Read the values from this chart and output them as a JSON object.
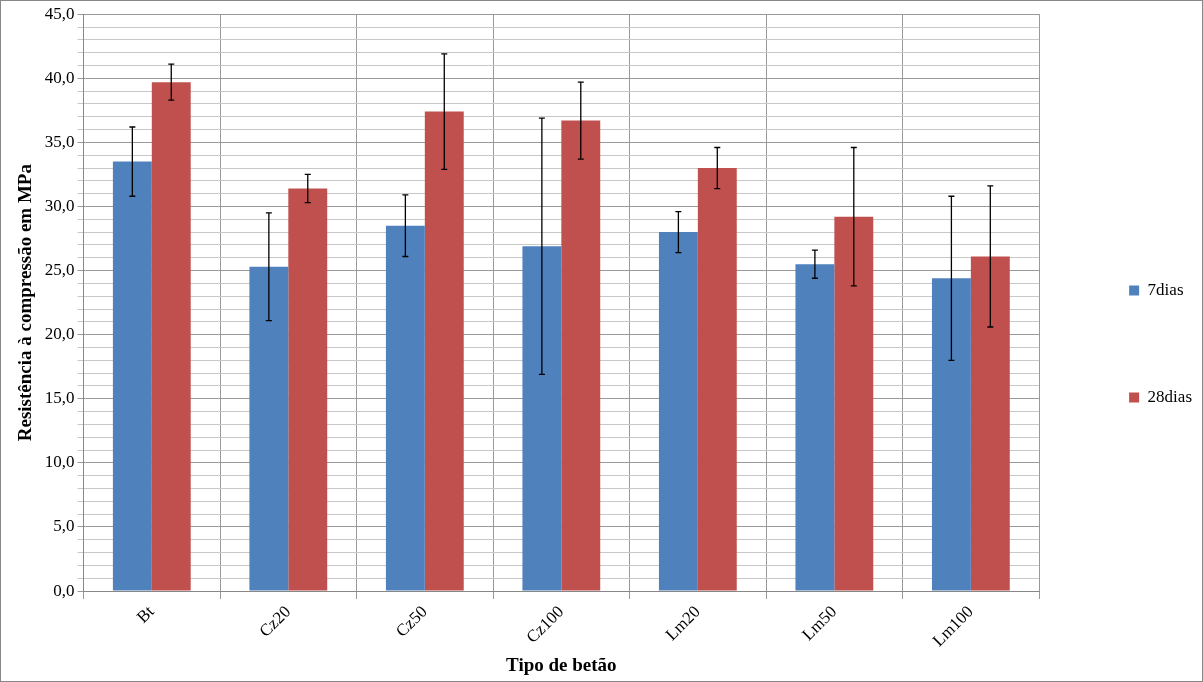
{
  "chart_data": {
    "type": "bar",
    "xlabel": "Tipo de betão",
    "ylabel": "Resistência à compressão em MPa",
    "categories": [
      "Bt",
      "Cz20",
      "Cz50",
      "Cz100",
      "Lm20",
      "Lm50",
      "Lm100"
    ],
    "series": [
      {
        "name": "7dias",
        "color": "#4f81bd",
        "values": [
          33.5,
          25.3,
          28.5,
          26.9,
          28.0,
          25.5,
          24.4
        ],
        "errors": [
          2.7,
          4.2,
          2.4,
          10.0,
          1.6,
          1.1,
          6.4
        ]
      },
      {
        "name": "28dias",
        "color": "#c0504d",
        "values": [
          39.7,
          31.4,
          37.4,
          36.7,
          33.0,
          29.2,
          26.1
        ],
        "errors": [
          1.4,
          1.1,
          4.5,
          3.0,
          1.6,
          5.4,
          5.5
        ]
      }
    ],
    "ylim": [
      0,
      45
    ],
    "yticks": [
      {
        "value": 0,
        "label": "0,0"
      },
      {
        "value": 1,
        "label": null
      },
      {
        "value": 2,
        "label": null
      },
      {
        "value": 3,
        "label": null
      },
      {
        "value": 4,
        "label": null
      },
      {
        "value": 5,
        "label": "5,0"
      },
      {
        "value": 6,
        "label": null
      },
      {
        "value": 7,
        "label": null
      },
      {
        "value": 8,
        "label": null
      },
      {
        "value": 9,
        "label": null
      },
      {
        "value": 10,
        "label": "10,0"
      },
      {
        "value": 11,
        "label": null
      },
      {
        "value": 12,
        "label": null
      },
      {
        "value": 13,
        "label": null
      },
      {
        "value": 14,
        "label": null
      },
      {
        "value": 15,
        "label": "15,0"
      },
      {
        "value": 16,
        "label": null
      },
      {
        "value": 17,
        "label": null
      },
      {
        "value": 18,
        "label": null
      },
      {
        "value": 19,
        "label": null
      },
      {
        "value": 20,
        "label": "20,0"
      },
      {
        "value": 21,
        "label": null
      },
      {
        "value": 22,
        "label": null
      },
      {
        "value": 23,
        "label": null
      },
      {
        "value": 24,
        "label": null
      },
      {
        "value": 25,
        "label": "25,0"
      },
      {
        "value": 26,
        "label": null
      },
      {
        "value": 27,
        "label": null
      },
      {
        "value": 28,
        "label": null
      },
      {
        "value": 29,
        "label": null
      },
      {
        "value": 30,
        "label": "30,0"
      },
      {
        "value": 31,
        "label": null
      },
      {
        "value": 32,
        "label": null
      },
      {
        "value": 33,
        "label": null
      },
      {
        "value": 34,
        "label": null
      },
      {
        "value": 35,
        "label": "35,0"
      },
      {
        "value": 36,
        "label": null
      },
      {
        "value": 37,
        "label": null
      },
      {
        "value": 38,
        "label": null
      },
      {
        "value": 39,
        "label": null
      },
      {
        "value": 40,
        "label": "40,0"
      },
      {
        "value": 41,
        "label": null
      },
      {
        "value": 42,
        "label": null
      },
      {
        "value": 43,
        "label": null
      },
      {
        "value": 44,
        "label": null
      },
      {
        "value": 45,
        "label": "45,0"
      }
    ],
    "grid": true,
    "legend": "right"
  }
}
